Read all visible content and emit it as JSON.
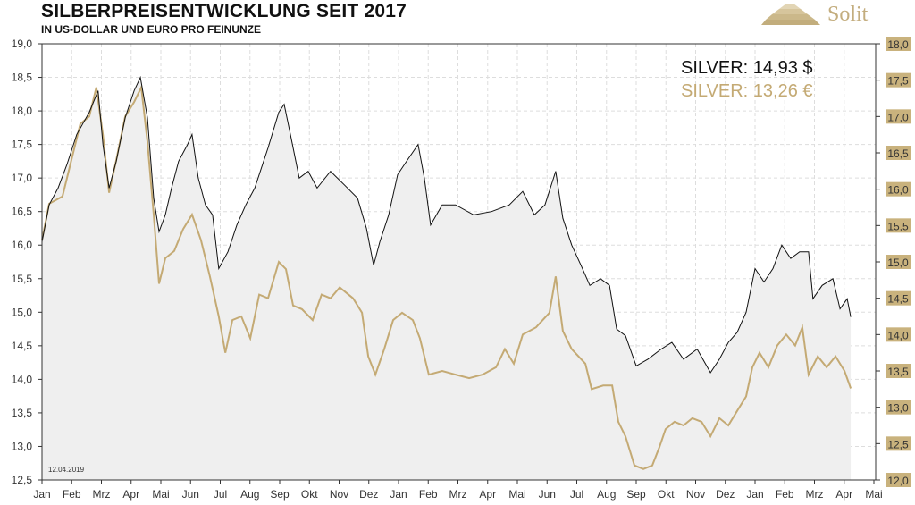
{
  "header": {
    "title": "SILBERPREISENTWICKLUNG SEIT 2017",
    "subtitle": "IN US-DOLLAR UND EURO PRO FEINUNZE",
    "logo": "Solit"
  },
  "colors": {
    "usd": "#111111",
    "eur": "#c4aa74",
    "fill": "#efefef",
    "right_tick_bg": "#c9b27d"
  },
  "chart_data": {
    "type": "line",
    "title": "SILBERPREISENTWICKLUNG SEIT 2017",
    "subtitle": "IN US-DOLLAR UND EURO PRO FEINUNZE",
    "x_unit": "months since Jan 2017",
    "x_ticks": [
      "Jan",
      "Feb",
      "Mrz",
      "Apr",
      "Mai",
      "Jun",
      "Jul",
      "Aug",
      "Sep",
      "Okt",
      "Nov",
      "Dez",
      "Jan",
      "Feb",
      "Mrz",
      "Apr",
      "Mai",
      "Jun",
      "Jul",
      "Aug",
      "Sep",
      "Okt",
      "Nov",
      "Dez",
      "Jan",
      "Feb",
      "Mrz",
      "Apr",
      "Mai"
    ],
    "y_left": {
      "label": "USD",
      "range": [
        12.5,
        19.0
      ],
      "ticks": [
        "12,5",
        "13,0",
        "13,5",
        "14,0",
        "14,5",
        "15,0",
        "15,5",
        "16,0",
        "16,5",
        "17,0",
        "17,5",
        "18,0",
        "18,5",
        "19,0"
      ]
    },
    "y_right": {
      "label": "EUR",
      "range": [
        12.0,
        18.0
      ],
      "ticks": [
        "12,0",
        "12,5",
        "13,0",
        "13,5",
        "14,0",
        "14,5",
        "15,0",
        "15,5",
        "16,0",
        "16,5",
        "17,0",
        "17,5",
        "18,0"
      ]
    },
    "grid": true,
    "date_note": "12.04.2019",
    "legend": [
      {
        "name": "SILVER: 14,93 $",
        "axis": "left"
      },
      {
        "name": "SILVER: 13,26 €",
        "axis": "right"
      }
    ],
    "series": [
      {
        "name": "USD",
        "axis": "left",
        "points": [
          [
            0,
            16.05
          ],
          [
            0.24,
            16.6
          ],
          [
            0.54,
            16.85
          ],
          [
            0.84,
            17.2
          ],
          [
            1.17,
            17.65
          ],
          [
            1.59,
            17.98
          ],
          [
            1.89,
            18.3
          ],
          [
            2.05,
            17.5
          ],
          [
            2.26,
            16.85
          ],
          [
            2.5,
            17.25
          ],
          [
            2.8,
            17.9
          ],
          [
            3.1,
            18.3
          ],
          [
            3.31,
            18.5
          ],
          [
            3.55,
            17.9
          ],
          [
            3.76,
            16.7
          ],
          [
            3.94,
            16.2
          ],
          [
            4.15,
            16.45
          ],
          [
            4.36,
            16.85
          ],
          [
            4.6,
            17.25
          ],
          [
            4.9,
            17.5
          ],
          [
            5.05,
            17.65
          ],
          [
            5.26,
            17.0
          ],
          [
            5.5,
            16.6
          ],
          [
            5.74,
            16.45
          ],
          [
            5.95,
            15.65
          ],
          [
            6.26,
            15.9
          ],
          [
            6.56,
            16.3
          ],
          [
            6.86,
            16.6
          ],
          [
            7.16,
            16.85
          ],
          [
            7.61,
            17.45
          ],
          [
            7.97,
            17.98
          ],
          [
            8.15,
            18.1
          ],
          [
            8.36,
            17.65
          ],
          [
            8.66,
            17.0
          ],
          [
            8.96,
            17.1
          ],
          [
            9.26,
            16.85
          ],
          [
            9.71,
            17.1
          ],
          [
            10.17,
            16.9
          ],
          [
            10.62,
            16.7
          ],
          [
            10.92,
            16.25
          ],
          [
            11.16,
            15.7
          ],
          [
            11.37,
            16.05
          ],
          [
            11.67,
            16.45
          ],
          [
            11.97,
            17.05
          ],
          [
            12.27,
            17.25
          ],
          [
            12.66,
            17.5
          ],
          [
            12.87,
            17.0
          ],
          [
            13.08,
            16.3
          ],
          [
            13.47,
            16.6
          ],
          [
            13.92,
            16.6
          ],
          [
            14.53,
            16.45
          ],
          [
            15.13,
            16.5
          ],
          [
            15.73,
            16.6
          ],
          [
            16.18,
            16.8
          ],
          [
            16.57,
            16.45
          ],
          [
            16.93,
            16.6
          ],
          [
            17.29,
            17.1
          ],
          [
            17.53,
            16.4
          ],
          [
            17.83,
            16.0
          ],
          [
            18.14,
            15.7
          ],
          [
            18.44,
            15.4
          ],
          [
            18.8,
            15.5
          ],
          [
            19.1,
            15.4
          ],
          [
            19.34,
            14.75
          ],
          [
            19.64,
            14.65
          ],
          [
            20.0,
            14.2
          ],
          [
            20.39,
            14.3
          ],
          [
            20.84,
            14.45
          ],
          [
            21.2,
            14.55
          ],
          [
            21.59,
            14.3
          ],
          [
            22.05,
            14.45
          ],
          [
            22.5,
            14.1
          ],
          [
            22.8,
            14.3
          ],
          [
            23.1,
            14.55
          ],
          [
            23.4,
            14.7
          ],
          [
            23.7,
            15.0
          ],
          [
            24.0,
            15.65
          ],
          [
            24.3,
            15.45
          ],
          [
            24.6,
            15.65
          ],
          [
            24.9,
            16.0
          ],
          [
            25.2,
            15.8
          ],
          [
            25.5,
            15.9
          ],
          [
            25.8,
            15.9
          ],
          [
            25.95,
            15.2
          ],
          [
            26.26,
            15.4
          ],
          [
            26.62,
            15.5
          ],
          [
            26.86,
            15.05
          ],
          [
            27.1,
            15.2
          ],
          [
            27.22,
            14.93
          ]
        ]
      },
      {
        "name": "EUR",
        "axis": "right",
        "points": [
          [
            0,
            15.3
          ],
          [
            0.24,
            15.8
          ],
          [
            0.69,
            15.9
          ],
          [
            0.99,
            16.4
          ],
          [
            1.29,
            16.9
          ],
          [
            1.59,
            17.0
          ],
          [
            1.83,
            17.4
          ],
          [
            2.05,
            16.75
          ],
          [
            2.26,
            15.95
          ],
          [
            2.5,
            16.4
          ],
          [
            2.8,
            17.0
          ],
          [
            3.1,
            17.2
          ],
          [
            3.34,
            17.4
          ],
          [
            3.55,
            16.65
          ],
          [
            3.76,
            15.65
          ],
          [
            3.94,
            14.7
          ],
          [
            4.15,
            15.05
          ],
          [
            4.45,
            15.15
          ],
          [
            4.75,
            15.45
          ],
          [
            5.05,
            15.65
          ],
          [
            5.35,
            15.3
          ],
          [
            5.65,
            14.8
          ],
          [
            5.95,
            14.25
          ],
          [
            6.17,
            13.75
          ],
          [
            6.41,
            14.2
          ],
          [
            6.71,
            14.25
          ],
          [
            7.01,
            13.95
          ],
          [
            7.31,
            14.55
          ],
          [
            7.61,
            14.5
          ],
          [
            7.97,
            15.0
          ],
          [
            8.21,
            14.9
          ],
          [
            8.45,
            14.4
          ],
          [
            8.75,
            14.35
          ],
          [
            9.11,
            14.2
          ],
          [
            9.41,
            14.55
          ],
          [
            9.71,
            14.5
          ],
          [
            10.02,
            14.65
          ],
          [
            10.47,
            14.5
          ],
          [
            10.77,
            14.3
          ],
          [
            10.98,
            13.7
          ],
          [
            11.22,
            13.45
          ],
          [
            11.52,
            13.8
          ],
          [
            11.82,
            14.2
          ],
          [
            12.12,
            14.3
          ],
          [
            12.48,
            14.2
          ],
          [
            12.72,
            13.95
          ],
          [
            13.02,
            13.45
          ],
          [
            13.47,
            13.5
          ],
          [
            13.92,
            13.45
          ],
          [
            14.38,
            13.4
          ],
          [
            14.83,
            13.45
          ],
          [
            15.28,
            13.55
          ],
          [
            15.58,
            13.8
          ],
          [
            15.88,
            13.6
          ],
          [
            16.18,
            14.0
          ],
          [
            16.63,
            14.1
          ],
          [
            17.08,
            14.3
          ],
          [
            17.29,
            14.8
          ],
          [
            17.53,
            14.05
          ],
          [
            17.83,
            13.8
          ],
          [
            18.29,
            13.6
          ],
          [
            18.5,
            13.25
          ],
          [
            18.89,
            13.3
          ],
          [
            19.19,
            13.3
          ],
          [
            19.4,
            12.8
          ],
          [
            19.64,
            12.6
          ],
          [
            19.94,
            12.2
          ],
          [
            20.24,
            12.15
          ],
          [
            20.54,
            12.2
          ],
          [
            20.78,
            12.45
          ],
          [
            20.99,
            12.7
          ],
          [
            21.29,
            12.8
          ],
          [
            21.59,
            12.75
          ],
          [
            21.89,
            12.85
          ],
          [
            22.2,
            12.8
          ],
          [
            22.5,
            12.6
          ],
          [
            22.8,
            12.85
          ],
          [
            23.1,
            12.75
          ],
          [
            23.4,
            12.95
          ],
          [
            23.7,
            13.15
          ],
          [
            23.91,
            13.55
          ],
          [
            24.15,
            13.75
          ],
          [
            24.45,
            13.55
          ],
          [
            24.75,
            13.85
          ],
          [
            25.05,
            14.0
          ],
          [
            25.35,
            13.85
          ],
          [
            25.59,
            14.1
          ],
          [
            25.8,
            13.45
          ],
          [
            26.11,
            13.7
          ],
          [
            26.41,
            13.55
          ],
          [
            26.71,
            13.7
          ],
          [
            27.01,
            13.5
          ],
          [
            27.22,
            13.26
          ]
        ]
      }
    ]
  }
}
